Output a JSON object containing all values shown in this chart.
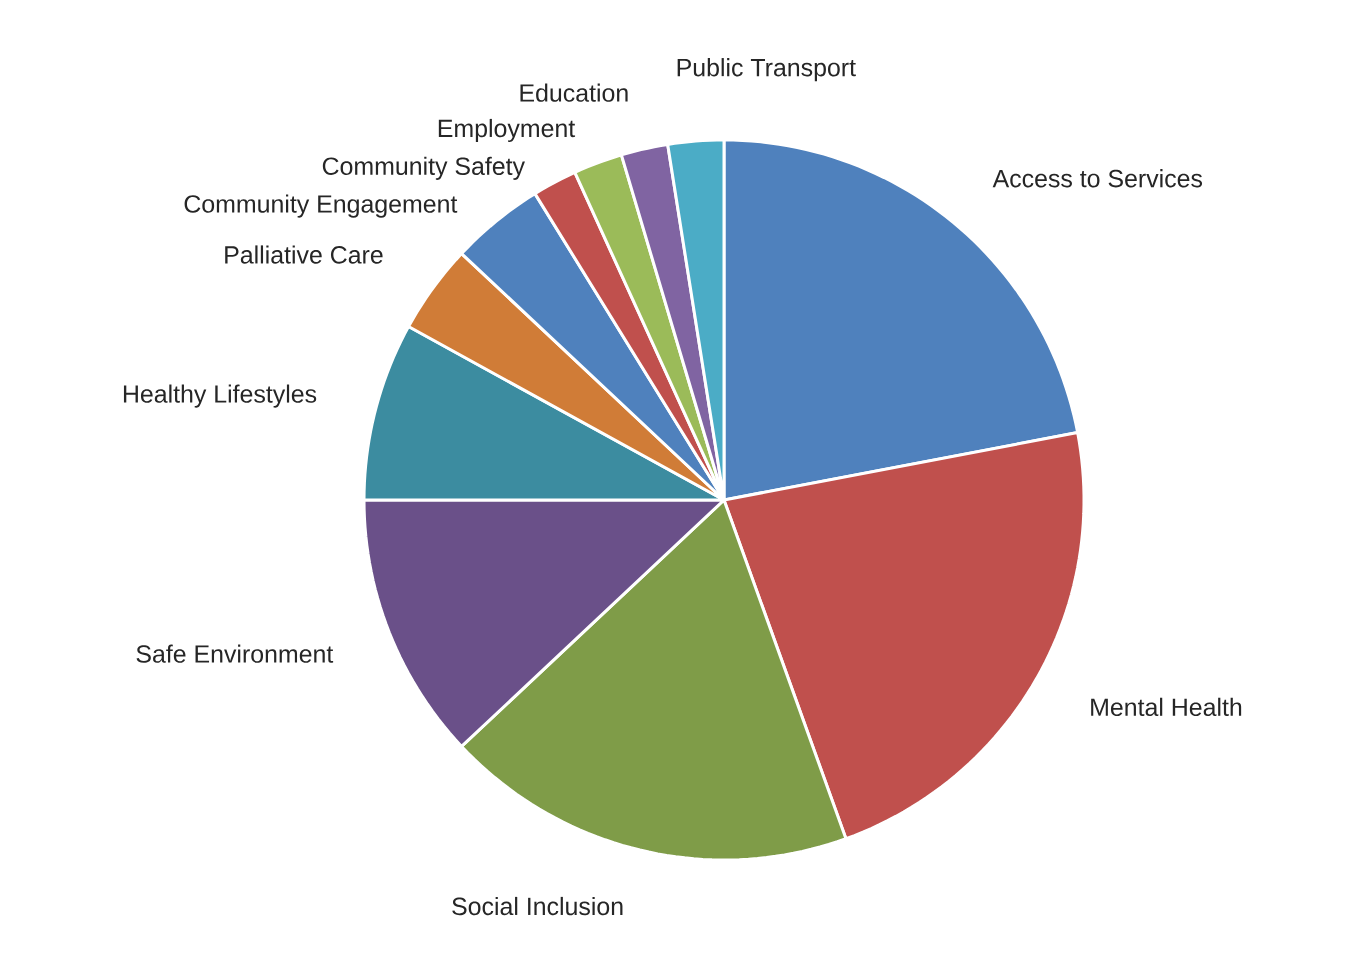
{
  "chart_data": {
    "type": "pie",
    "categories": [
      "Access to Services",
      "Mental Health",
      "Social Inclusion",
      "Safe Environment",
      "Healthy Lifestyles",
      "Palliative Care",
      "Community Engagement",
      "Community Safety",
      "Employment",
      "Education",
      "Public Transport"
    ],
    "values": [
      22,
      22.5,
      18.5,
      12,
      8,
      4,
      4.2,
      2,
      2.2,
      2.1,
      2.5
    ],
    "colors": [
      "#4f81bd",
      "#c0504d",
      "#7f9c48",
      "#6a5089",
      "#3c8ca0",
      "#d07c37",
      "#4f81bd",
      "#c0504d",
      "#9bbb59",
      "#8064a2",
      "#4bacc6"
    ]
  }
}
